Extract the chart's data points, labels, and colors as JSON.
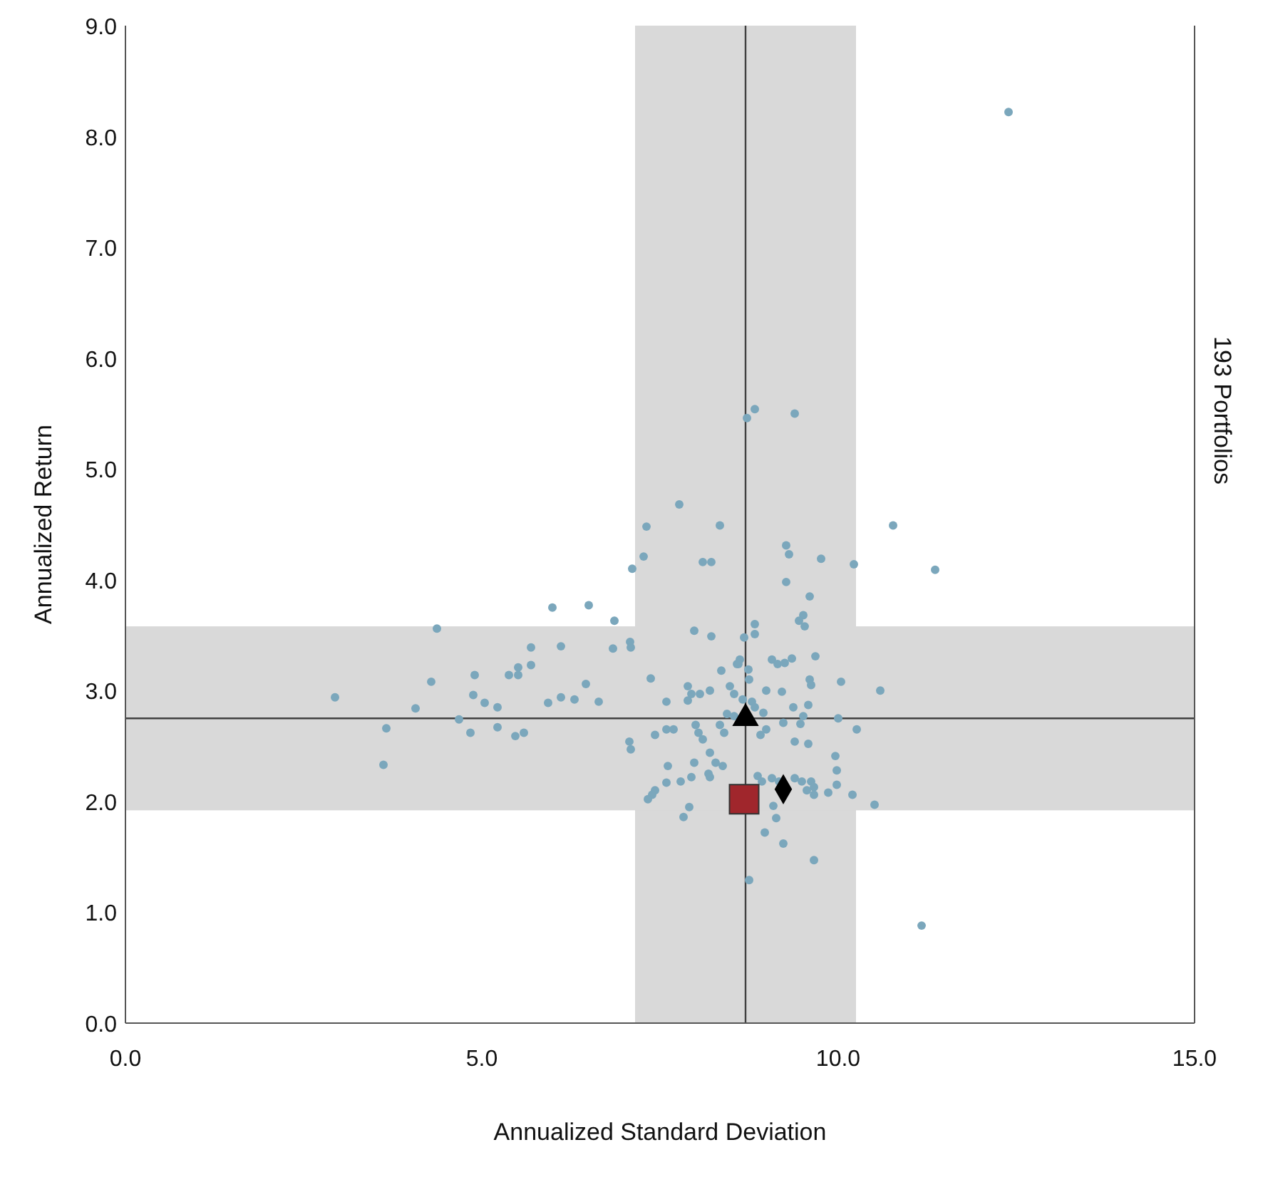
{
  "chart_data": {
    "type": "scatter",
    "xlabel": "Annualized Standard Deviation",
    "ylabel": "Annualized Return",
    "y2label": "193 Portfolios",
    "xlim": [
      0,
      15
    ],
    "xticks": [
      {
        "value": 0,
        "label": "0.0"
      },
      {
        "value": 5,
        "label": "5.0"
      },
      {
        "value": 10,
        "label": "10.0"
      },
      {
        "value": 15,
        "label": "15.0"
      }
    ],
    "ylim": [
      0,
      9
    ],
    "yticks": [
      {
        "value": 0,
        "label": "0.0"
      },
      {
        "value": 1,
        "label": "1.0"
      },
      {
        "value": 2,
        "label": "2.0"
      },
      {
        "value": 3,
        "label": "3.0"
      },
      {
        "value": 4,
        "label": "4.0"
      },
      {
        "value": 5,
        "label": "5.0"
      },
      {
        "value": 6,
        "label": "6.0"
      },
      {
        "value": 7,
        "label": "7.0"
      },
      {
        "value": 8,
        "label": "8.0"
      },
      {
        "value": 9,
        "label": "9.0"
      }
    ],
    "grid": false,
    "bands": [
      {
        "axis": "x",
        "from": 7.15,
        "to": 10.25,
        "color": "#d9d9d9"
      },
      {
        "axis": "y",
        "from": 1.92,
        "to": 3.58,
        "color": "#d9d9d9"
      }
    ],
    "ref_lines": [
      {
        "axis": "x",
        "value": 8.7,
        "color": "#404040"
      },
      {
        "axis": "y",
        "value": 2.75,
        "color": "#404040"
      }
    ],
    "series": [
      {
        "color": "#7ba7bc",
        "marker": "circle",
        "x": [
          2.94,
          4.37,
          4.29,
          4.07,
          3.66,
          3.62,
          4.68,
          4.84,
          4.88,
          4.9,
          5.04,
          5.22,
          5.22,
          5.38,
          5.51,
          5.51,
          5.69,
          5.69,
          5.47,
          5.59,
          5.99,
          6.5,
          6.11,
          5.93,
          6.11,
          6.3,
          6.46,
          6.64,
          6.86,
          6.84,
          7.08,
          7.09,
          7.11,
          7.07,
          8.72,
          8.83,
          9.39,
          7.77,
          7.31,
          7.27,
          8.34,
          8.1,
          8.22,
          9.27,
          9.31,
          9.76,
          10.22,
          10.77,
          9.27,
          9.6,
          9.51,
          9.45,
          9.53,
          7.98,
          8.22,
          8.83,
          8.83,
          8.68,
          9.68,
          9.07,
          9.15,
          9.25,
          9.35,
          8.62,
          8.58,
          7.37,
          7.59,
          7.89,
          7.94,
          7.89,
          8.06,
          8.2,
          8.36,
          8.6,
          8.74,
          8.75,
          8.48,
          8.54,
          8.66,
          8.79,
          8.83,
          8.99,
          9.21,
          9.37,
          9.58,
          9.51,
          9.47,
          9.6,
          9.62,
          10.04,
          10.59,
          10,
          10.26,
          8.95,
          8.99,
          8.91,
          9.23,
          9.39,
          9.58,
          9.96,
          9.98,
          8.44,
          8.54,
          8.34,
          8.4,
          8,
          8.04,
          8.1,
          8.2,
          8.28,
          8.38,
          7.59,
          7.69,
          7.43,
          7.09,
          7.61,
          7.98,
          7.59,
          7.79,
          7.94,
          8.18,
          8.2,
          7.43,
          7.39,
          7.33,
          7.91,
          7.83,
          8.87,
          8.93,
          9.07,
          9.17,
          9.39,
          9.49,
          9.62,
          9.66,
          9.56,
          9.66,
          9.86,
          9.98,
          10.2,
          10.51,
          9.09,
          9.13,
          8.97,
          9.23,
          9.66,
          8.75,
          11.36,
          11.17,
          12.39
        ],
        "values": [
          2.94,
          3.56,
          3.08,
          2.84,
          2.66,
          2.33,
          2.74,
          2.62,
          2.96,
          3.14,
          2.89,
          2.85,
          2.67,
          3.14,
          3.14,
          3.21,
          3.23,
          3.39,
          2.59,
          2.62,
          3.75,
          3.77,
          3.4,
          2.89,
          2.94,
          2.92,
          3.06,
          2.9,
          3.63,
          3.38,
          3.44,
          3.39,
          4.1,
          2.54,
          5.46,
          5.54,
          5.5,
          4.68,
          4.48,
          4.21,
          4.49,
          4.16,
          4.16,
          4.31,
          4.23,
          4.19,
          4.14,
          4.49,
          3.98,
          3.85,
          3.68,
          3.63,
          3.58,
          3.54,
          3.49,
          3.6,
          3.51,
          3.48,
          3.31,
          3.28,
          3.24,
          3.25,
          3.29,
          3.28,
          3.24,
          3.11,
          2.9,
          3.04,
          2.97,
          2.91,
          2.97,
          3,
          3.18,
          3.24,
          3.19,
          3.1,
          3.04,
          2.97,
          2.92,
          2.9,
          2.85,
          3,
          2.99,
          2.85,
          2.87,
          2.77,
          2.7,
          3.1,
          3.05,
          3.08,
          3,
          2.75,
          2.65,
          2.8,
          2.65,
          2.6,
          2.71,
          2.54,
          2.52,
          2.41,
          2.28,
          2.79,
          2.77,
          2.69,
          2.62,
          2.69,
          2.62,
          2.56,
          2.44,
          2.35,
          2.32,
          2.65,
          2.65,
          2.6,
          2.47,
          2.32,
          2.35,
          2.17,
          2.18,
          2.22,
          2.25,
          2.22,
          2.1,
          2.06,
          2.02,
          1.95,
          1.86,
          2.23,
          2.18,
          2.21,
          2.18,
          2.21,
          2.18,
          2.18,
          2.13,
          2.1,
          2.06,
          2.08,
          2.15,
          2.06,
          1.97,
          1.96,
          1.85,
          1.72,
          1.62,
          1.47,
          1.29,
          4.09,
          0.88,
          8.22
        ]
      },
      {
        "color": "#a0262c",
        "marker": "square",
        "x": [
          8.68
        ],
        "values": [
          2.02
        ]
      },
      {
        "color": "#000000",
        "marker": "triangle",
        "x": [
          8.7
        ],
        "values": [
          2.75
        ]
      },
      {
        "color": "#000000",
        "marker": "diamond",
        "x": [
          9.23
        ],
        "values": [
          2.11
        ]
      }
    ]
  }
}
